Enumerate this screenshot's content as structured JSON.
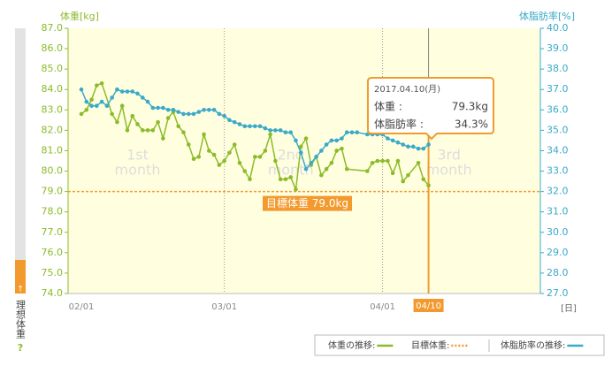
{
  "chart_data": {
    "type": "line",
    "y_label": "体重[kg]",
    "y2_label": "体脂肪率[%]",
    "x_unit": "[日]",
    "xlim": [
      -2.6,
      89.9
    ],
    "xticks": [
      {
        "value": 0,
        "label": "02/01"
      },
      {
        "value": 28,
        "label": "03/01"
      },
      {
        "value": 59,
        "label": "04/01"
      }
    ],
    "ylim": [
      74,
      87
    ],
    "yticks": [
      {
        "value": 74,
        "label": "74.0"
      },
      {
        "value": 75,
        "label": "75.0"
      },
      {
        "value": 76,
        "label": "76.0"
      },
      {
        "value": 77,
        "label": "77.0"
      },
      {
        "value": 78,
        "label": "78.0"
      },
      {
        "value": 79,
        "label": "79.0"
      },
      {
        "value": 80,
        "label": "80.0"
      },
      {
        "value": 81,
        "label": "81.0"
      },
      {
        "value": 82,
        "label": "82.0"
      },
      {
        "value": 83,
        "label": "83.0"
      },
      {
        "value": 84,
        "label": "84.0"
      },
      {
        "value": 85,
        "label": "85.0"
      },
      {
        "value": 86,
        "label": "86.0"
      },
      {
        "value": 87,
        "label": "87.0"
      }
    ],
    "y2lim": [
      27,
      40
    ],
    "y2ticks": [
      {
        "value": 27,
        "label": "27.0"
      },
      {
        "value": 28,
        "label": "28.0"
      },
      {
        "value": 29,
        "label": "29.0"
      },
      {
        "value": 30,
        "label": "30.0"
      },
      {
        "value": 31,
        "label": "31.0"
      },
      {
        "value": 32,
        "label": "32.0"
      },
      {
        "value": 33,
        "label": "33.0"
      },
      {
        "value": 34,
        "label": "34.0"
      },
      {
        "value": 35,
        "label": "35.0"
      },
      {
        "value": 36,
        "label": "36.0"
      },
      {
        "value": 37,
        "label": "37.0"
      },
      {
        "value": 38,
        "label": "38.0"
      },
      {
        "value": 39,
        "label": "39.0"
      },
      {
        "value": 40,
        "label": "40.0"
      }
    ],
    "month_labels": [
      [
        "1st",
        "month"
      ],
      [
        "2nd",
        "month"
      ],
      [
        "3rd",
        "month"
      ]
    ],
    "series": [
      {
        "name": "体重の推移:",
        "color": "#8cbb2a",
        "x": [
          0,
          1,
          2,
          3,
          4,
          6,
          7,
          8,
          9,
          10,
          11,
          12,
          13,
          14,
          15,
          16,
          17,
          18,
          19,
          20,
          21,
          22,
          23,
          24,
          25,
          26,
          27,
          28,
          29,
          30,
          31,
          32,
          33,
          34,
          35,
          36,
          37,
          38,
          39,
          40,
          41,
          42,
          43,
          44,
          45,
          46,
          47,
          48,
          49,
          50,
          51,
          52,
          56,
          57,
          58,
          59,
          60,
          61,
          62,
          63,
          64,
          66,
          67,
          68
        ],
        "values": [
          82.8,
          83.0,
          83.5,
          84.2,
          84.3,
          82.8,
          82.4,
          83.2,
          82.0,
          82.7,
          82.3,
          82.0,
          82.0,
          82.0,
          82.4,
          81.6,
          82.6,
          82.9,
          82.2,
          81.9,
          81.3,
          80.6,
          80.7,
          81.8,
          81.0,
          80.8,
          80.3,
          80.5,
          80.9,
          81.3,
          80.4,
          80.0,
          79.6,
          80.7,
          80.7,
          81.0,
          81.8,
          80.5,
          79.6,
          79.6,
          79.7,
          79.1,
          81.2,
          81.6,
          80.3,
          80.7,
          79.8,
          80.1,
          80.4,
          81.0,
          81.1,
          80.1,
          80.0,
          80.4,
          80.5,
          80.5,
          80.5,
          79.9,
          80.5,
          79.5,
          79.8,
          80.4,
          79.6,
          79.3
        ]
      },
      {
        "name": "体脂肪率の推移:",
        "color": "#3ba9c9",
        "axis": "y2",
        "x": [
          0,
          1,
          2,
          3,
          4,
          5,
          6,
          7,
          8,
          9,
          10,
          11,
          12,
          13,
          14,
          15,
          16,
          17,
          18,
          19,
          20,
          21,
          22,
          23,
          24,
          25,
          26,
          27,
          28,
          29,
          30,
          31,
          32,
          33,
          34,
          35,
          36,
          37,
          38,
          39,
          40,
          41,
          42,
          43,
          44,
          45,
          46,
          47,
          48,
          49,
          50,
          51,
          52,
          53,
          54,
          56,
          57,
          58,
          59,
          60,
          61,
          62,
          63,
          64,
          65,
          66,
          67,
          68
        ],
        "values": [
          37.0,
          36.4,
          36.2,
          36.2,
          36.4,
          36.2,
          36.6,
          37.0,
          36.9,
          36.9,
          36.9,
          36.8,
          36.6,
          36.4,
          36.1,
          36.1,
          36.1,
          36.0,
          36.0,
          35.9,
          35.8,
          35.8,
          35.8,
          35.9,
          36.0,
          36.0,
          36.0,
          35.8,
          35.7,
          35.5,
          35.4,
          35.3,
          35.2,
          35.2,
          35.2,
          35.2,
          35.1,
          35.0,
          35.0,
          35.0,
          34.9,
          34.9,
          34.5,
          33.9,
          33.1,
          33.4,
          33.7,
          34.0,
          34.3,
          34.5,
          34.5,
          34.6,
          34.9,
          34.9,
          34.9,
          34.8,
          34.8,
          34.8,
          34.8,
          34.6,
          34.5,
          34.4,
          34.3,
          34.2,
          34.2,
          34.1,
          34.1,
          34.3
        ]
      }
    ],
    "target": {
      "name": "目標体重:",
      "value": 79.0,
      "label": "目標体重 79.0kg",
      "color": "#f29a2e"
    },
    "highlight": {
      "x": 68,
      "label": "04/10",
      "date": "2017.04.10(月)",
      "rows": [
        {
          "label": "体重 :",
          "value": "79.3kg"
        },
        {
          "label": "体脂肪率 :",
          "value": "34.3%"
        }
      ]
    },
    "sidebar": {
      "label": "理想体重",
      "help": "?",
      "arrow": "↑"
    }
  }
}
